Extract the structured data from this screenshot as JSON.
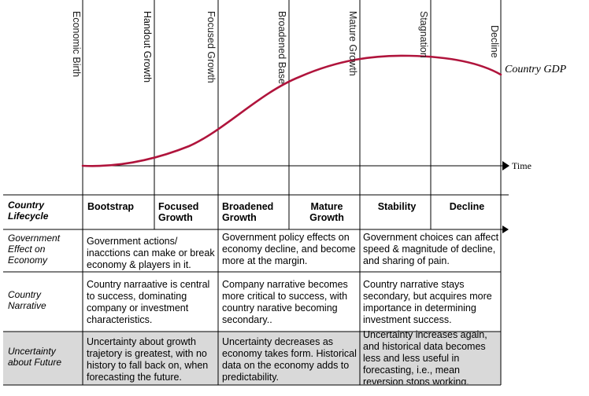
{
  "stages": [
    "Economic Birth",
    "Handout Growth",
    "Focused Growth",
    "Broadened Base",
    "Mature Growth",
    "Stagnation",
    "Decline"
  ],
  "curve_label": "Country GDP",
  "time_label": "Time",
  "table": {
    "row_labels": [
      "Country Lifecycle",
      "Government Effect on Economy",
      "Country Narrative",
      "Uncertainty about Future"
    ],
    "phases": [
      "Bootstrap",
      "Focused Growth",
      "Broadened Growth",
      "Mature Growth",
      "Stability",
      "Decline"
    ],
    "government": [
      "Government actions/ inacctions can make or break economy & players in it.",
      "Government policy effects on economy decline, and become more at the margin.",
      "Government choices can affect speed & magnitude of decline, and sharing of pain."
    ],
    "narrative": [
      "Country narraative is central to success, dominating company or investment characteristics.",
      "Company narrative becomes more critical to success, with country narative becoming secondary..",
      "Country narrative stays secondary, but acquires more importance in determining investment success."
    ],
    "uncertainty": [
      "Uncertainty about growth trajetory is greatest, with no history to fall back on, when forecasting the future.",
      "Uncertainty decreases as economy takes form. Historical data on the economy adds to predictability.",
      "Uncertainty increases again, and historical data becomes less and less useful in forecasting, i.e., mean reversion stops working."
    ]
  },
  "colors": {
    "curve": "#b0143c",
    "shade": "#d9d9d9",
    "line": "#000000"
  }
}
